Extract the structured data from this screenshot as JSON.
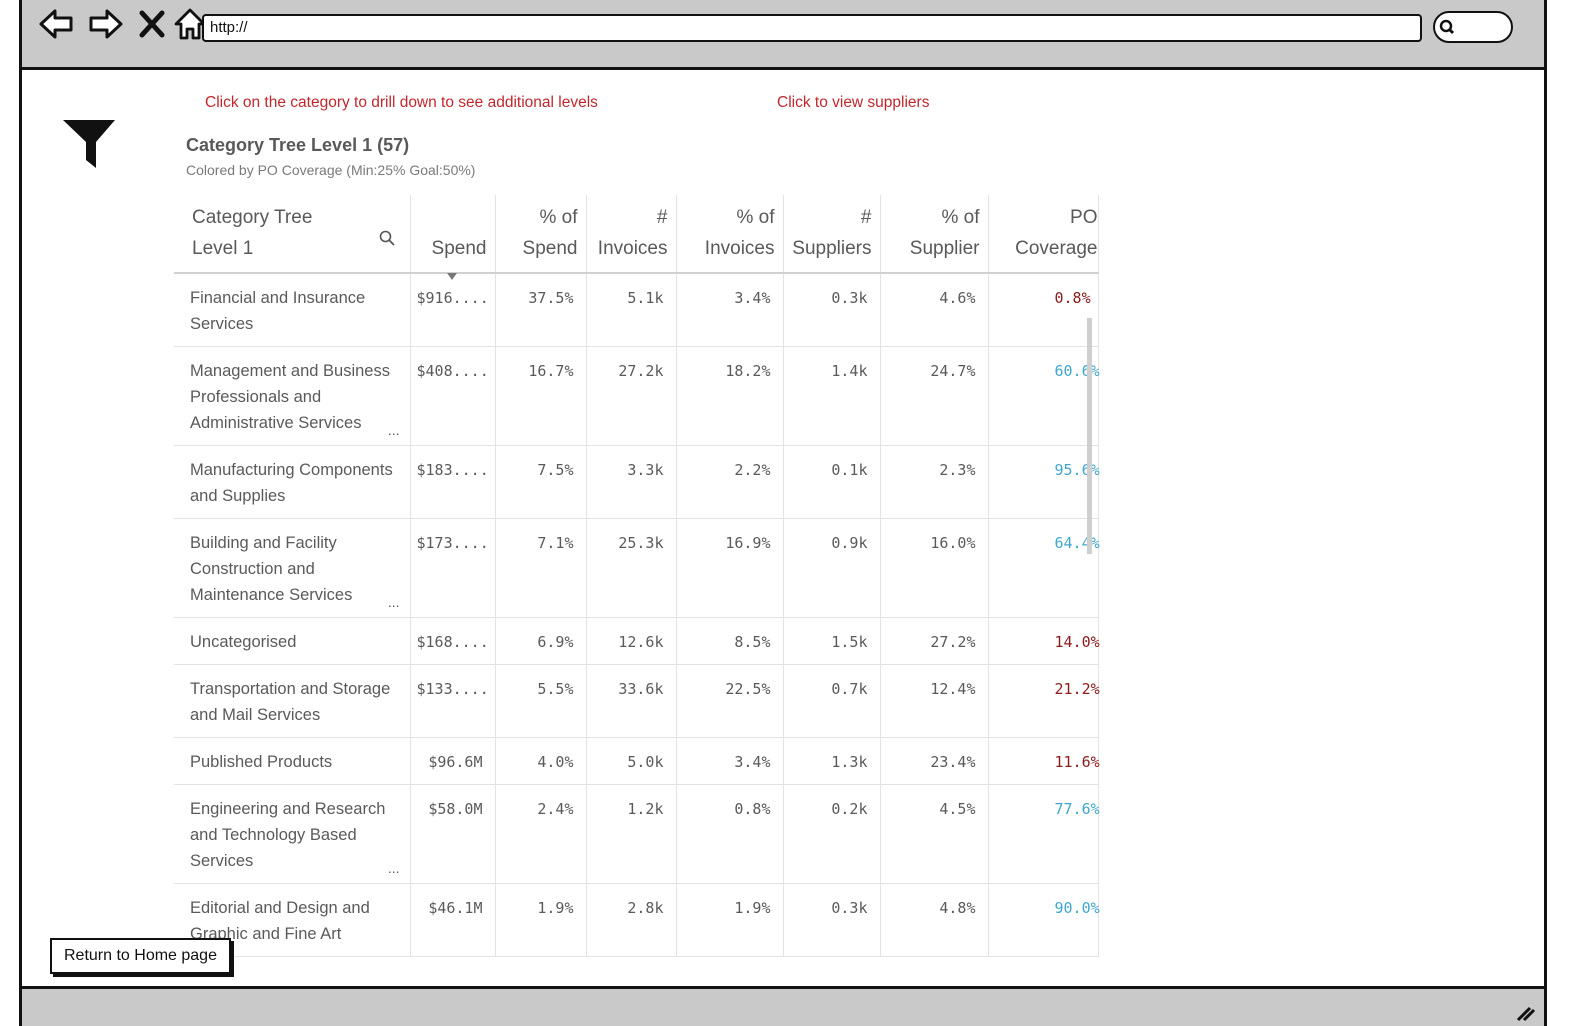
{
  "browser": {
    "url": "http://"
  },
  "instructions": {
    "drill_down": "Click on the category to drill down to see additional levels",
    "view_suppliers": "Click to view suppliers"
  },
  "widget": {
    "title": "Category Tree Level 1 (57)",
    "subtitle": "Colored by PO Coverage (Min:25% Goal:50%)"
  },
  "table": {
    "headers": {
      "category_l1": "Category Tree",
      "category_l2": "Level 1",
      "spend": "Spend",
      "pct_spend_1": "% of",
      "pct_spend_2": "Spend",
      "invoices_1": "#",
      "invoices_2": "Invoices",
      "pct_invoices_1": "% of",
      "pct_invoices_2": "Invoices",
      "suppliers_1": "#",
      "suppliers_2": "Suppliers",
      "pct_supplier_1": "% of",
      "pct_supplier_2": "Supplier",
      "po_1": "PO",
      "po_2": "Coverage"
    },
    "rows": [
      {
        "category": "Financial and Insurance Services",
        "spend": "$916....",
        "pct_spend": "37.5%",
        "invoices": "5.1k",
        "pct_invoices": "3.4%",
        "suppliers": "0.3k",
        "pct_supplier": "4.6%",
        "po": "0.8%",
        "po_color": "red"
      },
      {
        "category": "Management and Business Professionals and Administrative Services",
        "ellipsis": "...",
        "spend": "$408....",
        "pct_spend": "16.7%",
        "invoices": "27.2k",
        "pct_invoices": "18.2%",
        "suppliers": "1.4k",
        "pct_supplier": "24.7%",
        "po": "60.6%",
        "po_color": "blue"
      },
      {
        "category": "Manufacturing Components and Supplies",
        "spend": "$183....",
        "pct_spend": "7.5%",
        "invoices": "3.3k",
        "pct_invoices": "2.2%",
        "suppliers": "0.1k",
        "pct_supplier": "2.3%",
        "po": "95.6%",
        "po_color": "blue"
      },
      {
        "category": "Building and Facility Construction and Maintenance Services",
        "ellipsis": "...",
        "spend": "$173....",
        "pct_spend": "7.1%",
        "invoices": "25.3k",
        "pct_invoices": "16.9%",
        "suppliers": "0.9k",
        "pct_supplier": "16.0%",
        "po": "64.4%",
        "po_color": "blue"
      },
      {
        "category": "Uncategorised",
        "spend": "$168....",
        "pct_spend": "6.9%",
        "invoices": "12.6k",
        "pct_invoices": "8.5%",
        "suppliers": "1.5k",
        "pct_supplier": "27.2%",
        "po": "14.0%",
        "po_color": "red"
      },
      {
        "category": "Transportation and Storage and Mail Services",
        "spend": "$133....",
        "pct_spend": "5.5%",
        "invoices": "33.6k",
        "pct_invoices": "22.5%",
        "suppliers": "0.7k",
        "pct_supplier": "12.4%",
        "po": "21.2%",
        "po_color": "red"
      },
      {
        "category": "Published Products",
        "spend": "$96.6M",
        "pct_spend": "4.0%",
        "invoices": "5.0k",
        "pct_invoices": "3.4%",
        "suppliers": "1.3k",
        "pct_supplier": "23.4%",
        "po": "11.6%",
        "po_color": "red"
      },
      {
        "category": "Engineering and Research and Technology Based Services",
        "ellipsis": "...",
        "spend": "$58.0M",
        "pct_spend": "2.4%",
        "invoices": "1.2k",
        "pct_invoices": "0.8%",
        "suppliers": "0.2k",
        "pct_supplier": "4.5%",
        "po": "77.6%",
        "po_color": "blue"
      },
      {
        "category": "Editorial and Design and Graphic and Fine Art",
        "spend": "$46.1M",
        "pct_spend": "1.9%",
        "invoices": "2.8k",
        "pct_invoices": "1.9%",
        "suppliers": "0.3k",
        "pct_supplier": "4.8%",
        "po": "90.0%",
        "po_color": "blue"
      }
    ]
  },
  "buttons": {
    "return_home": "Return to Home page"
  },
  "colors": {
    "instruction_text": "#c0282d",
    "po_low": "#8b1a1a",
    "po_high": "#3fa7cf"
  },
  "icons": [
    "back-arrow-icon",
    "forward-arrow-icon",
    "close-icon",
    "home-icon",
    "search-icon",
    "filter-icon",
    "search-column-icon",
    "resize-grip-icon"
  ]
}
